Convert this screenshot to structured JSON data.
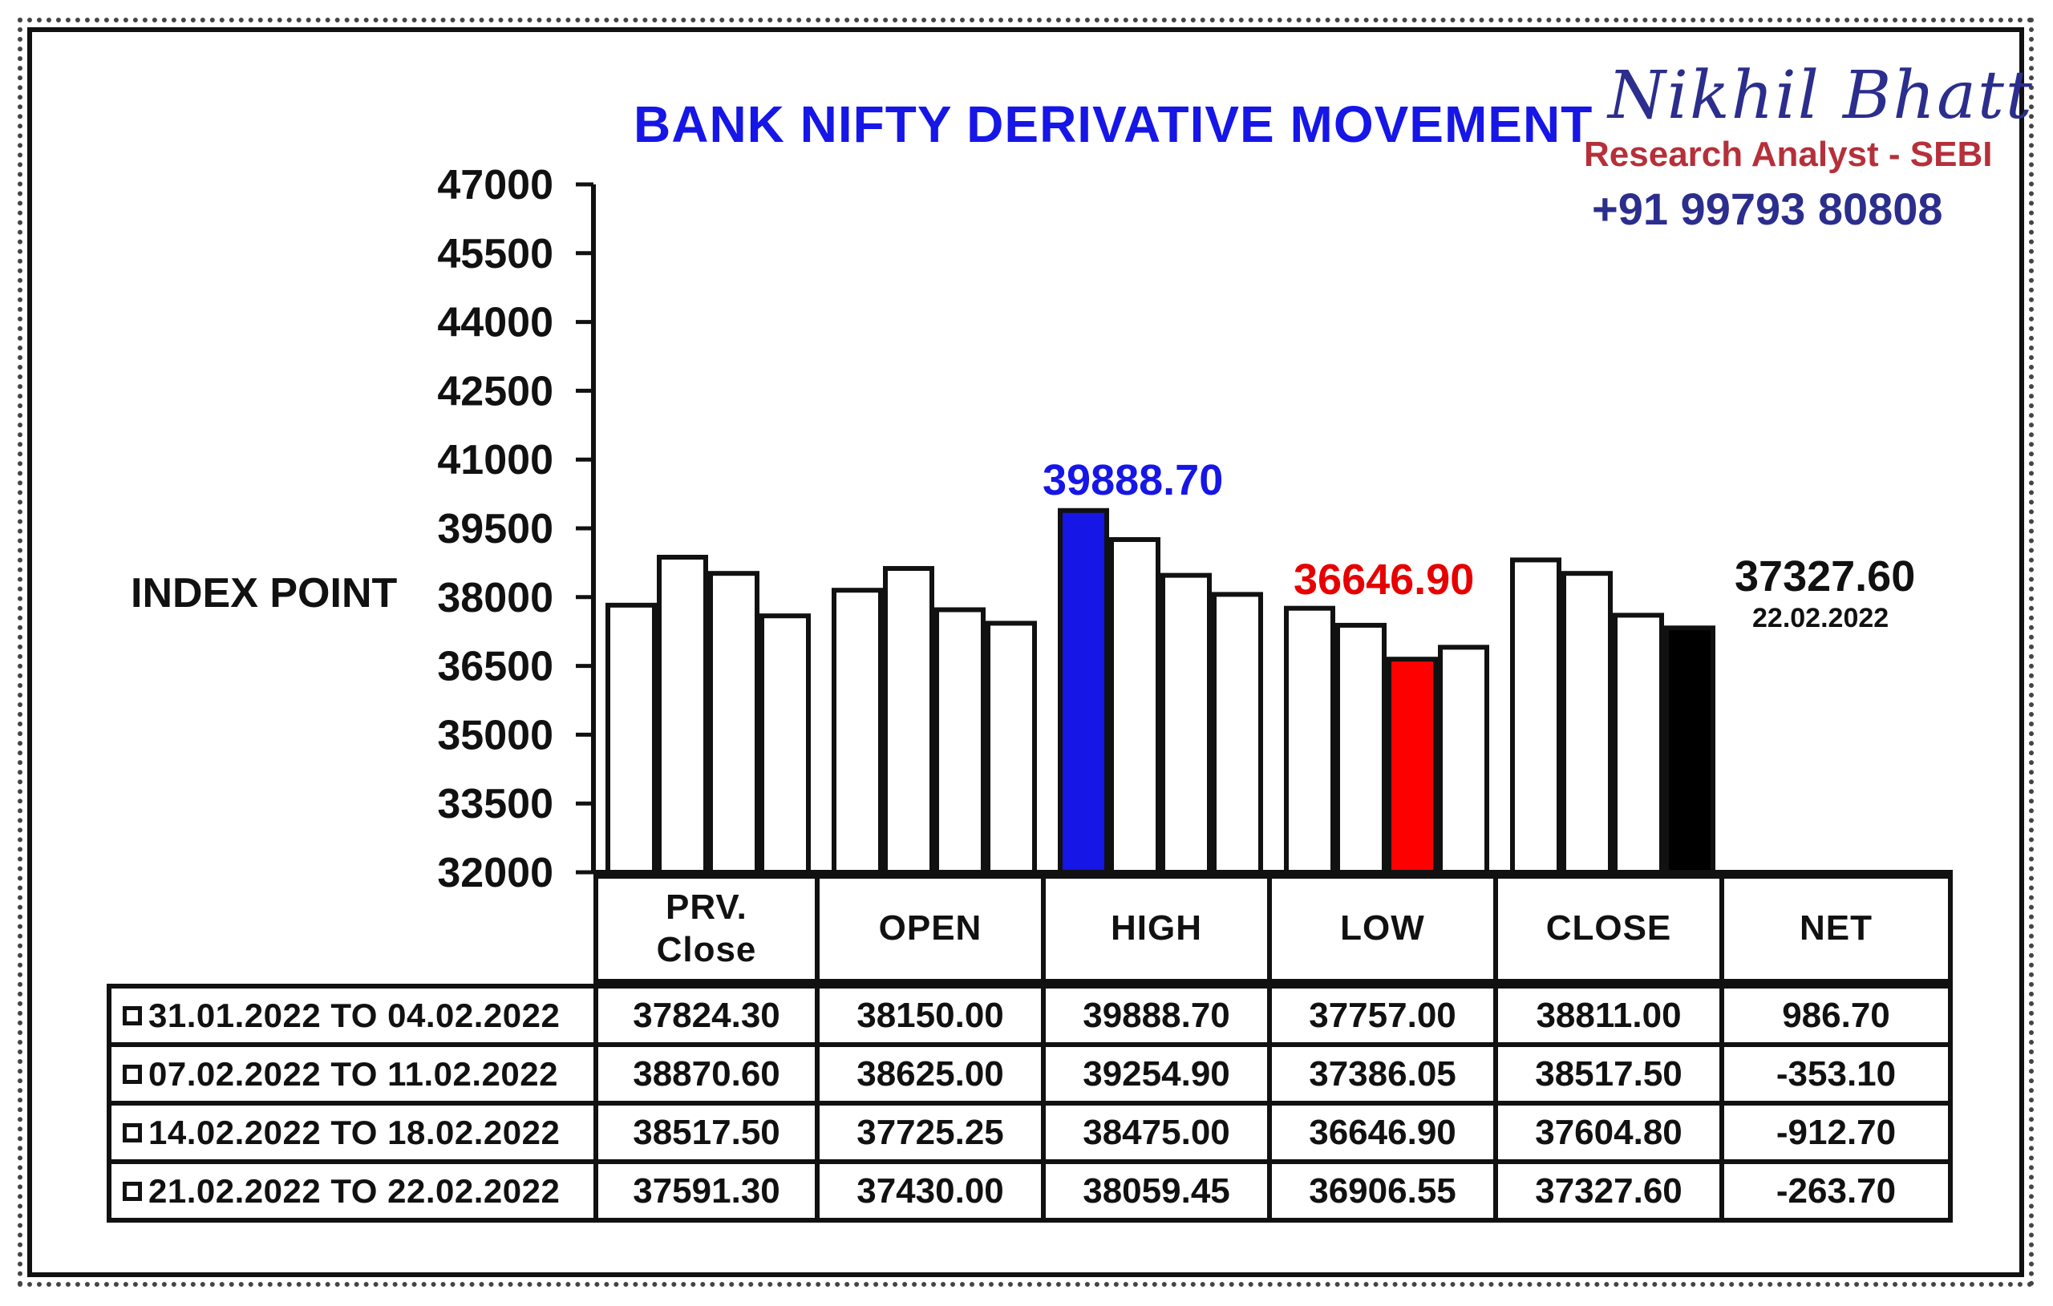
{
  "title": "BANK NIFTY DERIVATIVE MOVEMENT",
  "brand": {
    "name": "Nikhil Bhatt",
    "role": "Research Analyst - SEBI",
    "phone": "+91 99793 80808"
  },
  "annotations": {
    "high": "39888.70",
    "low": "36646.90",
    "close": "37327.60",
    "close_date": "22.02.2022"
  },
  "colors": {
    "title": "#1616e6",
    "high_bar": "#1616e6",
    "low_bar": "#ff0000",
    "close_bar": "#000000",
    "bar_default": "#ffffff"
  },
  "chart_data": {
    "type": "bar",
    "title": "BANK NIFTY DERIVATIVE MOVEMENT",
    "ylabel": "INDEX POINT",
    "ylim": [
      32000,
      47000
    ],
    "yticks": [
      "47000",
      "45500",
      "44000",
      "42500",
      "41000",
      "39500",
      "38000",
      "36500",
      "35000",
      "33500",
      "32000"
    ],
    "categories": [
      "PRV. Close",
      "OPEN",
      "HIGH",
      "LOW",
      "CLOSE"
    ],
    "series": [
      {
        "name": "31.01.2022 TO 04.02.2022",
        "values": [
          37824.3,
          38150.0,
          39888.7,
          37757.0,
          38811.0
        ]
      },
      {
        "name": "07.02.2022 TO 11.02.2022",
        "values": [
          38870.6,
          38625.0,
          39254.9,
          37386.05,
          38517.5
        ]
      },
      {
        "name": "14.02.2022 TO 18.02.2022",
        "values": [
          38517.5,
          37725.25,
          38475.0,
          36646.9,
          37604.8
        ]
      },
      {
        "name": "21.02.2022 TO 22.02.2022",
        "values": [
          37591.3,
          37430.0,
          38059.45,
          36906.55,
          37327.6
        ]
      }
    ],
    "highlighted": [
      {
        "category": "HIGH",
        "series": 0,
        "color": "#1616e6"
      },
      {
        "category": "LOW",
        "series": 2,
        "color": "#ff0000"
      },
      {
        "category": "CLOSE",
        "series": 3,
        "color": "#000000"
      }
    ]
  },
  "table": {
    "headers": [
      "PRV.\nClose",
      "OPEN",
      "HIGH",
      "LOW",
      "CLOSE",
      "NET"
    ],
    "rows": [
      {
        "label": "31.01.2022 TO 04.02.2022",
        "cells": [
          "37824.30",
          "38150.00",
          "39888.70",
          "37757.00",
          "38811.00",
          "986.70"
        ]
      },
      {
        "label": "07.02.2022 TO 11.02.2022",
        "cells": [
          "38870.60",
          "38625.00",
          "39254.90",
          "37386.05",
          "38517.50",
          "-353.10"
        ]
      },
      {
        "label": "14.02.2022 TO 18.02.2022",
        "cells": [
          "38517.50",
          "37725.25",
          "38475.00",
          "36646.90",
          "37604.80",
          "-912.70"
        ]
      },
      {
        "label": "21.02.2022 TO 22.02.2022",
        "cells": [
          "37591.30",
          "37430.00",
          "38059.45",
          "36906.55",
          "37327.60",
          "-263.70"
        ]
      }
    ]
  }
}
